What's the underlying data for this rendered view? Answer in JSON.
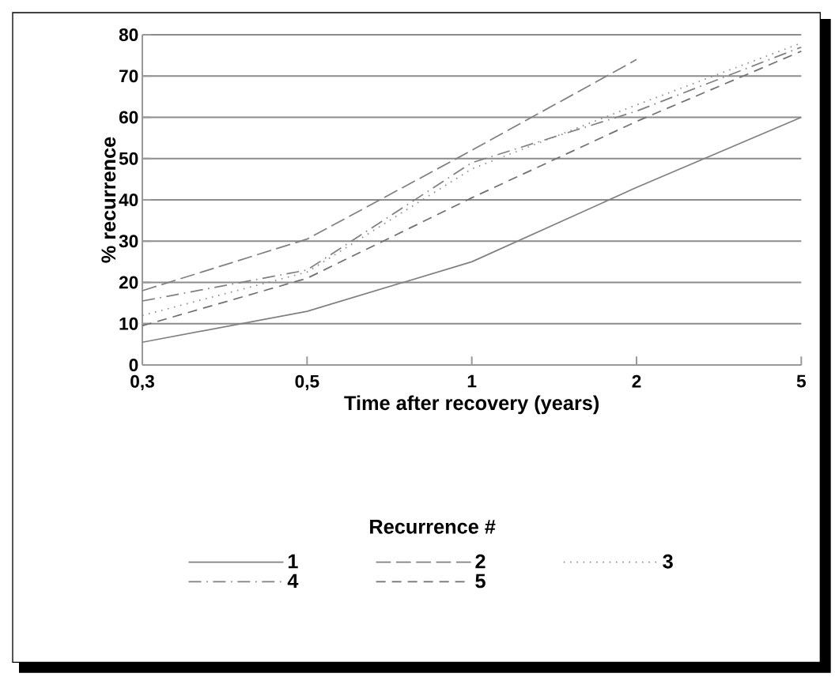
{
  "chart_data": {
    "type": "line",
    "xlabel": "Time after recovery (years)",
    "ylabel": "% recurrence",
    "legend_title": "Recurrence #",
    "categories": [
      "0,3",
      "0,5",
      "1",
      "2",
      "5"
    ],
    "series": [
      {
        "name": "1",
        "color": "#808080",
        "line_style": "solid",
        "values": [
          5.5,
          13,
          25,
          43,
          60
        ]
      },
      {
        "name": "2",
        "color": "#808080",
        "line_style": "long dashed",
        "values": [
          18,
          30.5,
          52,
          74,
          null
        ]
      },
      {
        "name": "3",
        "color": "#8c8c8c",
        "line_style": "dotted",
        "values": [
          12,
          22.5,
          47.5,
          63,
          78
        ]
      },
      {
        "name": "4",
        "color": "#808080",
        "line_style": "dash dot",
        "values": [
          15.5,
          23,
          49,
          61.5,
          77
        ]
      },
      {
        "name": "5",
        "color": "#707070",
        "line_style": "dashed",
        "values": [
          9.5,
          21,
          40.5,
          59,
          76
        ]
      }
    ],
    "ylim": [
      0,
      80
    ],
    "yticks": [
      0,
      10,
      20,
      30,
      40,
      50,
      60,
      70,
      80
    ],
    "grid": "y",
    "legend": "bottom",
    "marker": "none"
  }
}
